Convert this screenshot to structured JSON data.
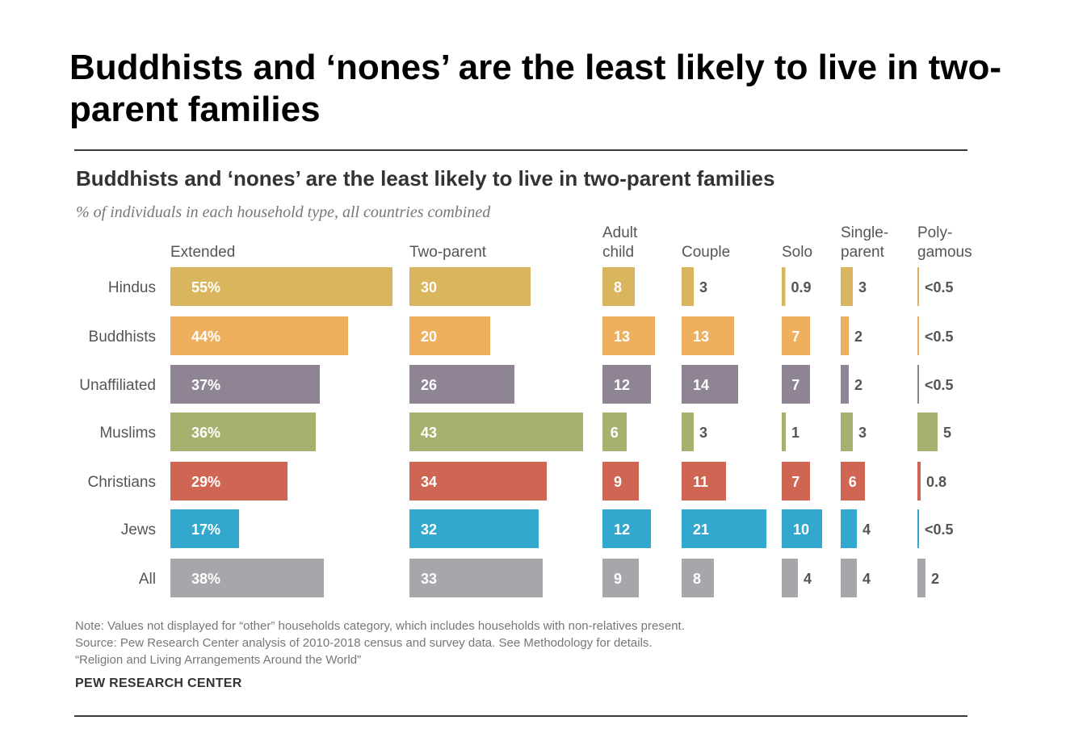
{
  "headline": "Buddhists and ‘nones’ are the least likely to live in two-parent families",
  "chart_data": {
    "type": "bar",
    "title": "Buddhists and ‘nones’ are the least likely to live in two-parent families",
    "subtitle": "% of individuals in each household type, all countries combined",
    "categories": [
      "Hindus",
      "Buddhists",
      "Unaffiliated",
      "Muslims",
      "Christians",
      "Jews",
      "All"
    ],
    "colors": [
      "#d9b65d",
      "#eeb05f",
      "#8e8494",
      "#a5b16f",
      "#cf6553",
      "#33a8cf",
      "#a6a7ab"
    ],
    "series": [
      {
        "name": "Extended",
        "values": [
          55,
          44,
          37,
          36,
          29,
          17,
          38
        ],
        "labels": [
          "55%",
          "44%",
          "37%",
          "36%",
          "29%",
          "17%",
          "38%"
        ]
      },
      {
        "name": "Two-parent",
        "values": [
          30,
          20,
          26,
          43,
          34,
          32,
          33
        ],
        "labels": [
          "30",
          "20",
          "26",
          "43",
          "34",
          "32",
          "33"
        ]
      },
      {
        "name": "Adult child",
        "values": [
          8,
          13,
          12,
          6,
          9,
          12,
          9
        ],
        "labels": [
          "8",
          "13",
          "12",
          "6",
          "9",
          "12",
          "9"
        ]
      },
      {
        "name": "Couple",
        "values": [
          3,
          13,
          14,
          3,
          11,
          21,
          8
        ],
        "labels": [
          "3",
          "13",
          "14",
          "3",
          "11",
          "21",
          "8"
        ]
      },
      {
        "name": "Solo",
        "values": [
          0.9,
          7,
          7,
          1,
          7,
          10,
          4
        ],
        "labels": [
          "0.9",
          "7",
          "7",
          "1",
          "7",
          "10",
          "4"
        ]
      },
      {
        "name": "Single-parent",
        "values": [
          3,
          2,
          2,
          3,
          6,
          4,
          4
        ],
        "labels": [
          "3",
          "2",
          "2",
          "3",
          "6",
          "4",
          "4"
        ]
      },
      {
        "name": "Poly-gamous",
        "values": [
          0.3,
          0.3,
          0.3,
          5,
          0.8,
          0.3,
          2
        ],
        "labels": [
          "<0.5",
          "<0.5",
          "<0.5",
          "5",
          "0.8",
          "<0.5",
          "2"
        ]
      }
    ]
  },
  "notes": {
    "note": "Note: Values not displayed for “other” households category, which includes households with non-relatives present.",
    "source": "Source: Pew Research Center analysis of 2010-2018 census and survey data. See Methodology for details.",
    "report": "“Religion and Living Arrangements Around the World”"
  },
  "brand": "PEW RESEARCH CENTER"
}
